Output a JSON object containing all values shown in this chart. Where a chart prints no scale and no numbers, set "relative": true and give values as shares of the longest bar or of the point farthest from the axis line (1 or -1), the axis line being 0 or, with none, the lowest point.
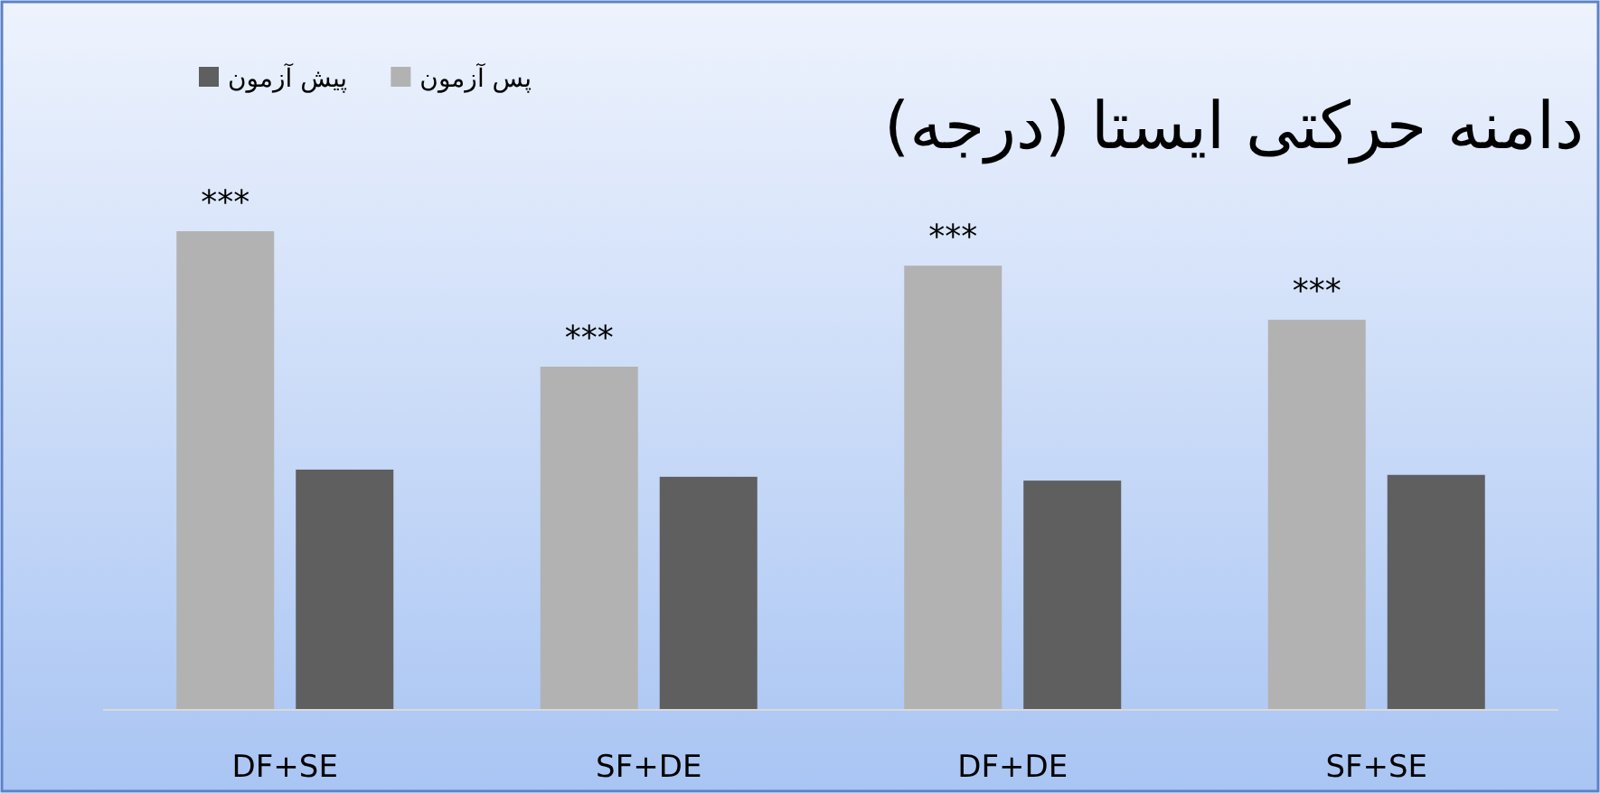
{
  "chart_data": {
    "type": "bar",
    "title": "دامنه حرکتی ایستا (درجه)",
    "categories": [
      "DF+SE",
      "SF+DE",
      "DF+DE",
      "SF+SE"
    ],
    "relative": true,
    "legend": "top left",
    "series": [
      {
        "name": "پس آزمون",
        "color": "#b2b2b2",
        "values": [
          1,
          0.717,
          0.928,
          0.815
        ]
      },
      {
        "name": "پیش آزمون",
        "color": "#5f5f5f",
        "values": [
          0.502,
          0.487,
          0.479,
          0.491
        ]
      }
    ],
    "annotations": [
      "***",
      "***",
      "***",
      "***"
    ]
  }
}
